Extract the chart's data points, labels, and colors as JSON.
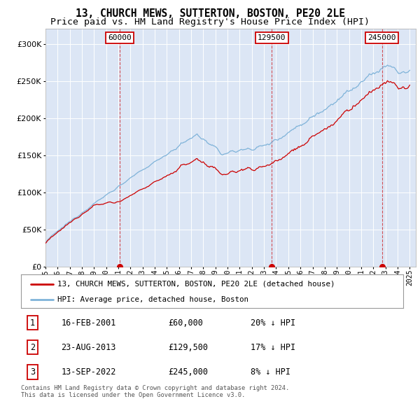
{
  "title": "13, CHURCH MEWS, SUTTERTON, BOSTON, PE20 2LE",
  "subtitle": "Price paid vs. HM Land Registry's House Price Index (HPI)",
  "ylim": [
    0,
    320000
  ],
  "yticks": [
    0,
    50000,
    100000,
    150000,
    200000,
    250000,
    300000
  ],
  "x_start_year": 1995,
  "x_end_year": 2025,
  "background_color": "#ffffff",
  "plot_bg_color": "#dce6f5",
  "grid_color": "#ffffff",
  "hpi_color": "#7fb3d9",
  "price_color": "#cc0000",
  "vline_color": "#cc0000",
  "trans_years": [
    2001.13,
    2013.65,
    2022.71
  ],
  "trans_prices": [
    60000,
    129500,
    245000
  ],
  "trans_labels": [
    "1",
    "2",
    "3"
  ],
  "legend_entries": [
    "13, CHURCH MEWS, SUTTERTON, BOSTON, PE20 2LE (detached house)",
    "HPI: Average price, detached house, Boston"
  ],
  "table_rows": [
    {
      "num": "1",
      "date": "16-FEB-2001",
      "price": "£60,000",
      "hpi": "20% ↓ HPI"
    },
    {
      "num": "2",
      "date": "23-AUG-2013",
      "price": "£129,500",
      "hpi": "17% ↓ HPI"
    },
    {
      "num": "3",
      "date": "13-SEP-2022",
      "price": "£245,000",
      "hpi": "8% ↓ HPI"
    }
  ],
  "footnote": "Contains HM Land Registry data © Crown copyright and database right 2024.\nThis data is licensed under the Open Government Licence v3.0.",
  "title_fontsize": 10.5,
  "subtitle_fontsize": 9.5,
  "tick_fontsize": 7,
  "ytick_fontsize": 8
}
